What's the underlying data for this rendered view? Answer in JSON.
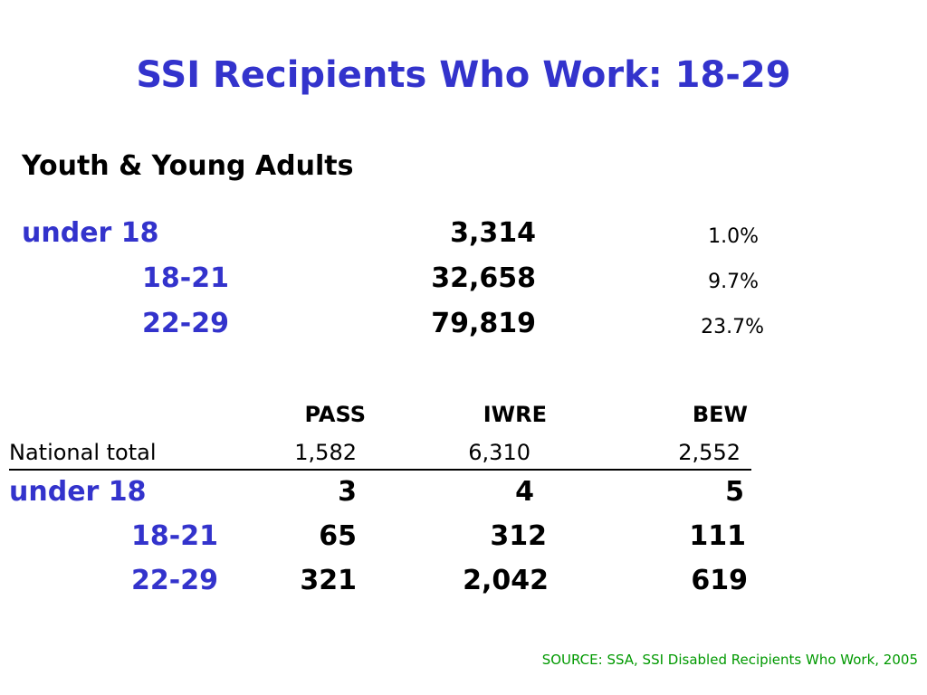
{
  "slide": {
    "title": "SSI Recipients Who Work:  18-29",
    "subtitle": "Youth & Young Adults",
    "age_groups": [
      {
        "label": "under  18",
        "count": "3,314",
        "percent": "1.0%"
      },
      {
        "label": "18-21",
        "count": "32,658",
        "percent": "9.7%"
      },
      {
        "label": "22-29",
        "count": "79,819",
        "percent": "23.7%"
      }
    ],
    "work_incentives": {
      "headers": [
        "PASS",
        "IWRE",
        "BEW"
      ],
      "national": {
        "label": "National total",
        "values": [
          "1,582",
          "6,310",
          "2,552"
        ]
      },
      "rows": [
        {
          "label": "under  18",
          "values": [
            "3",
            "4",
            "5"
          ]
        },
        {
          "label": "18-21",
          "values": [
            "65",
            "312",
            "111"
          ]
        },
        {
          "label": "22-29",
          "values": [
            "321",
            "2,042",
            "619"
          ]
        }
      ]
    },
    "source": "SOURCE: SSA, SSI Disabled Recipients Who Work, 2005"
  },
  "colors": {
    "title": "#3333cc",
    "labels": "#3333cc",
    "source": "#009900"
  }
}
